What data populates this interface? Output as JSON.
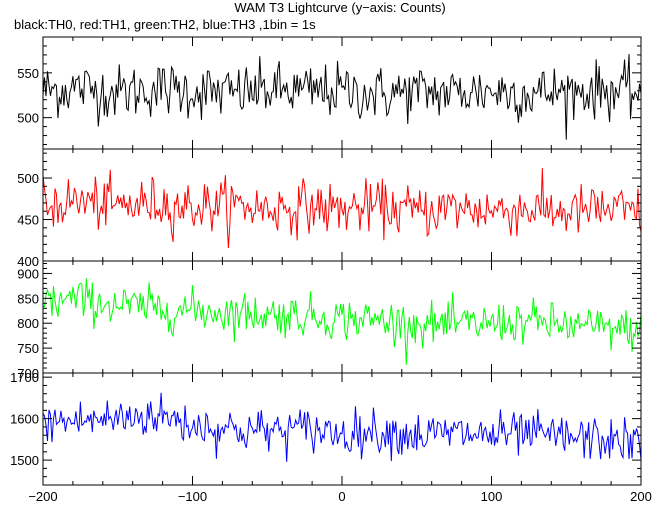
{
  "chart_data": {
    "type": "line",
    "title": "WAM T3 Lightcurve (y−axis: Counts)",
    "subtitle": "black:TH0, red:TH1, green:TH2, blue:TH3 ,1bin = 1s",
    "xlabel": "",
    "ylabel": "",
    "x_range": [
      -200,
      200
    ],
    "x_ticks": [
      -200,
      -100,
      0,
      100,
      200
    ],
    "x_tick_labels": [
      "−200",
      "−100",
      "0",
      "100",
      "200"
    ],
    "grid": false,
    "panels": [
      {
        "series_name": "TH0",
        "color": "#000000",
        "ylim": [
          465,
          590
        ],
        "y_ticks": [
          500,
          550
        ],
        "y_tick_labels": [
          "500",
          "550"
        ],
        "mean": 530,
        "amplitude": 28,
        "x": [
          -200,
          -175,
          -150,
          -125,
          -100,
          -75,
          -50,
          -25,
          0,
          25,
          50,
          75,
          100,
          125,
          150,
          175,
          200
        ],
        "values": [
          530,
          533,
          528,
          532,
          530,
          527,
          531,
          529,
          530,
          526,
          529,
          528,
          530,
          527,
          529,
          531,
          528
        ]
      },
      {
        "series_name": "TH1",
        "color": "#ff0000",
        "ylim": [
          400,
          535
        ],
        "y_ticks": [
          400,
          450,
          500
        ],
        "y_tick_labels": [
          "400",
          "450",
          "500"
        ],
        "mean": 465,
        "amplitude": 28,
        "x": [
          -200,
          -175,
          -150,
          -125,
          -100,
          -75,
          -50,
          -25,
          0,
          25,
          50,
          75,
          100,
          125,
          150,
          175,
          200
        ],
        "values": [
          468,
          472,
          466,
          470,
          465,
          468,
          463,
          466,
          462,
          465,
          460,
          464,
          461,
          463,
          459,
          462,
          458
        ]
      },
      {
        "series_name": "TH2",
        "color": "#00ff00",
        "ylim": [
          700,
          925
        ],
        "y_ticks": [
          700,
          750,
          800,
          850,
          900
        ],
        "y_tick_labels": [
          "700",
          "750",
          "800",
          "850",
          "900"
        ],
        "mean": 810,
        "amplitude": 38,
        "x": [
          -200,
          -175,
          -150,
          -125,
          -100,
          -75,
          -50,
          -25,
          0,
          25,
          50,
          75,
          100,
          125,
          150,
          175,
          200
        ],
        "values": [
          842,
          848,
          836,
          830,
          826,
          822,
          818,
          815,
          810,
          806,
          798,
          796,
          800,
          804,
          795,
          790,
          785
        ]
      },
      {
        "series_name": "TH3",
        "color": "#0000ff",
        "ylim": [
          1440,
          1710
        ],
        "y_ticks": [
          1500,
          1600,
          1700
        ],
        "y_tick_labels": [
          "1500",
          "1600",
          "1700"
        ],
        "mean": 1575,
        "amplitude": 48,
        "x": [
          -200,
          -175,
          -150,
          -125,
          -100,
          -75,
          -50,
          -25,
          0,
          25,
          50,
          75,
          100,
          125,
          150,
          175,
          200
        ],
        "values": [
          1590,
          1595,
          1600,
          1610,
          1585,
          1575,
          1570,
          1575,
          1565,
          1570,
          1560,
          1565,
          1560,
          1562,
          1555,
          1550,
          1540
        ]
      }
    ]
  }
}
